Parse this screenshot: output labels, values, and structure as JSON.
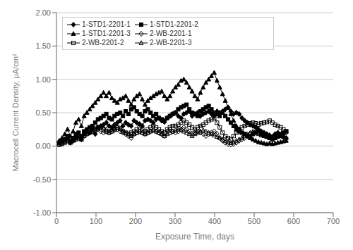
{
  "chart_data": {
    "type": "line",
    "xlabel": "Exposure Time, days",
    "ylabel": "Macrocell Current Density, μA/cm²",
    "x": [
      7,
      14,
      21,
      28,
      35,
      42,
      49,
      56,
      63,
      70,
      77,
      84,
      91,
      98,
      105,
      112,
      119,
      126,
      133,
      140,
      147,
      154,
      161,
      168,
      175,
      182,
      189,
      196,
      203,
      210,
      217,
      224,
      231,
      238,
      245,
      252,
      259,
      266,
      273,
      280,
      287,
      294,
      301,
      308,
      315,
      322,
      329,
      336,
      343,
      350,
      357,
      364,
      371,
      378,
      385,
      392,
      399,
      406,
      413,
      420,
      427,
      434,
      441,
      448,
      455,
      462,
      469,
      476,
      483,
      490,
      497,
      504,
      511,
      518,
      525,
      532,
      539,
      546,
      553,
      560,
      567,
      574,
      581
    ],
    "series": [
      {
        "name": "1-STD1-2201-1",
        "color": "#000000",
        "marker": "diamond",
        "values": [
          0.05,
          0.08,
          0.1,
          0.12,
          0.05,
          0.08,
          0.12,
          0.15,
          0.1,
          0.18,
          0.22,
          0.2,
          0.25,
          0.18,
          0.28,
          0.3,
          0.32,
          0.35,
          0.3,
          0.28,
          0.32,
          0.35,
          0.38,
          0.3,
          0.35,
          0.32,
          0.3,
          0.38,
          0.35,
          0.33,
          0.3,
          0.38,
          0.4,
          0.38,
          0.35,
          0.4,
          0.42,
          0.38,
          0.36,
          0.42,
          0.45,
          0.48,
          0.5,
          0.45,
          0.42,
          0.48,
          0.5,
          0.52,
          0.45,
          0.48,
          0.5,
          0.45,
          0.48,
          0.5,
          0.52,
          0.48,
          0.45,
          0.52,
          0.5,
          0.52,
          0.55,
          0.58,
          0.52,
          0.48,
          0.5,
          0.48,
          0.42,
          0.38,
          0.35,
          0.32,
          0.3,
          0.28,
          0.25,
          0.22,
          0.2,
          0.18,
          0.16,
          0.14,
          0.18,
          0.2,
          0.16,
          0.14,
          0.12
        ]
      },
      {
        "name": "1-STD1-2201-2",
        "color": "#000000",
        "marker": "square",
        "values": [
          0.05,
          0.08,
          0.1,
          0.15,
          0.08,
          0.12,
          0.18,
          0.2,
          0.15,
          0.22,
          0.25,
          0.28,
          0.3,
          0.35,
          0.4,
          0.42,
          0.45,
          0.48,
          0.42,
          0.4,
          0.45,
          0.48,
          0.5,
          0.45,
          0.52,
          0.48,
          0.55,
          0.58,
          0.52,
          0.48,
          0.45,
          0.52,
          0.55,
          0.5,
          0.45,
          0.48,
          0.42,
          0.4,
          0.38,
          0.42,
          0.45,
          0.48,
          0.5,
          0.55,
          0.58,
          0.6,
          0.62,
          0.55,
          0.5,
          0.48,
          0.45,
          0.52,
          0.55,
          0.58,
          0.6,
          0.55,
          0.5,
          0.48,
          0.45,
          0.5,
          0.45,
          0.4,
          0.35,
          0.3,
          0.25,
          0.22,
          0.2,
          0.18,
          0.15,
          0.14,
          0.18,
          0.2,
          0.22,
          0.18,
          0.16,
          0.14,
          0.12,
          0.1,
          0.12,
          0.15,
          0.18,
          0.2,
          0.22
        ]
      },
      {
        "name": "1-STD1-2201-3",
        "color": "#000000",
        "marker": "triangle",
        "values": [
          0.08,
          0.12,
          0.18,
          0.25,
          0.15,
          0.22,
          0.35,
          0.4,
          0.3,
          0.45,
          0.5,
          0.55,
          0.6,
          0.65,
          0.7,
          0.75,
          0.8,
          0.75,
          0.8,
          0.72,
          0.68,
          0.65,
          0.7,
          0.72,
          0.75,
          0.68,
          0.62,
          0.7,
          0.75,
          0.78,
          0.7,
          0.62,
          0.68,
          0.72,
          0.75,
          0.78,
          0.8,
          0.82,
          0.75,
          0.7,
          0.75,
          0.82,
          0.88,
          0.92,
          0.98,
          1.0,
          0.95,
          0.88,
          0.82,
          0.75,
          0.7,
          0.8,
          0.88,
          0.95,
          1.0,
          1.05,
          1.1,
          0.98,
          0.88,
          0.78,
          0.68,
          0.58,
          0.48,
          0.38,
          0.3,
          0.25,
          0.2,
          0.18,
          0.15,
          0.12,
          0.1,
          0.08,
          0.06,
          0.05,
          0.04,
          0.03,
          0.04,
          0.03,
          0.04,
          0.05,
          0.06,
          0.07,
          0.08
        ]
      },
      {
        "name": "2-WB-2201-1",
        "color": "#000000",
        "marker": "hollow_diamond",
        "values": [
          0.02,
          0.04,
          0.06,
          0.08,
          0.05,
          0.08,
          0.1,
          0.12,
          0.1,
          0.15,
          0.18,
          0.2,
          0.22,
          0.24,
          0.25,
          0.22,
          0.2,
          0.22,
          0.2,
          0.22,
          0.24,
          0.25,
          0.22,
          0.2,
          0.18,
          0.15,
          0.12,
          0.18,
          0.2,
          0.22,
          0.2,
          0.18,
          0.2,
          0.22,
          0.24,
          0.22,
          0.2,
          0.18,
          0.15,
          0.22,
          0.25,
          0.22,
          0.2,
          0.22,
          0.25,
          0.28,
          0.25,
          0.22,
          0.18,
          0.2,
          0.22,
          0.2,
          0.18,
          0.15,
          0.18,
          0.2,
          0.22,
          0.18,
          0.12,
          0.08,
          0.05,
          0.03,
          0.02,
          0.03,
          0.05,
          0.08,
          0.1,
          0.12,
          0.15,
          0.18,
          0.2,
          0.22,
          0.2,
          0.18,
          0.16,
          0.15,
          0.14,
          0.12,
          0.14,
          0.15,
          0.16,
          0.18,
          0.2
        ]
      },
      {
        "name": "2-WB-2201-2",
        "color": "#000000",
        "marker": "hollow_square",
        "values": [
          0.03,
          0.05,
          0.07,
          0.1,
          0.06,
          0.1,
          0.12,
          0.15,
          0.12,
          0.18,
          0.2,
          0.22,
          0.25,
          0.26,
          0.28,
          0.28,
          0.25,
          0.22,
          0.2,
          0.22,
          0.25,
          0.28,
          0.26,
          0.22,
          0.2,
          0.18,
          0.2,
          0.22,
          0.25,
          0.28,
          0.25,
          0.22,
          0.25,
          0.28,
          0.3,
          0.28,
          0.25,
          0.22,
          0.2,
          0.25,
          0.28,
          0.3,
          0.3,
          0.32,
          0.35,
          0.38,
          0.35,
          0.32,
          0.28,
          0.25,
          0.28,
          0.3,
          0.32,
          0.35,
          0.38,
          0.4,
          0.42,
          0.35,
          0.28,
          0.2,
          0.15,
          0.12,
          0.1,
          0.15,
          0.2,
          0.25,
          0.28,
          0.3,
          0.32,
          0.34,
          0.35,
          0.34,
          0.32,
          0.34,
          0.35,
          0.36,
          0.38,
          0.35,
          0.32,
          0.3,
          0.28,
          0.25,
          0.22
        ]
      },
      {
        "name": "2-WB-2201-3",
        "color": "#000000",
        "marker": "hollow_triangle",
        "values": [
          0.02,
          0.03,
          0.05,
          0.08,
          0.05,
          0.08,
          0.1,
          0.12,
          0.1,
          0.15,
          0.18,
          0.2,
          0.22,
          0.24,
          0.26,
          0.28,
          0.28,
          0.25,
          0.22,
          0.25,
          0.26,
          0.28,
          0.26,
          0.22,
          0.2,
          0.18,
          0.15,
          0.18,
          0.2,
          0.22,
          0.2,
          0.18,
          0.2,
          0.22,
          0.24,
          0.22,
          0.2,
          0.18,
          0.15,
          0.18,
          0.2,
          0.22,
          0.24,
          0.26,
          0.24,
          0.22,
          0.2,
          0.18,
          0.15,
          0.18,
          0.2,
          0.22,
          0.24,
          0.22,
          0.2,
          0.18,
          0.16,
          0.14,
          0.12,
          0.1,
          0.08,
          0.06,
          0.05,
          0.06,
          0.08,
          0.1,
          0.12,
          0.15,
          0.18,
          0.2,
          0.22,
          0.2,
          0.18,
          0.16,
          0.15,
          0.14,
          0.12,
          0.1,
          0.12,
          0.14,
          0.15,
          0.14,
          0.12
        ]
      }
    ],
    "xlim": [
      0,
      700
    ],
    "xticks": [
      0,
      100,
      200,
      300,
      400,
      500,
      600,
      700
    ],
    "ylim": [
      -1.0,
      2.0
    ],
    "yticks": [
      {
        "value": -1.0,
        "label": "-1.00"
      },
      {
        "value": -0.5,
        "label": "-0.50"
      },
      {
        "value": 0.0,
        "label": "0.00"
      },
      {
        "value": 0.5,
        "label": "0.50"
      },
      {
        "value": 1.0,
        "label": "1.00"
      },
      {
        "value": 1.5,
        "label": "1.50"
      },
      {
        "value": 2.0,
        "label": "2.00"
      }
    ],
    "grid": true,
    "legend": "upper left"
  }
}
